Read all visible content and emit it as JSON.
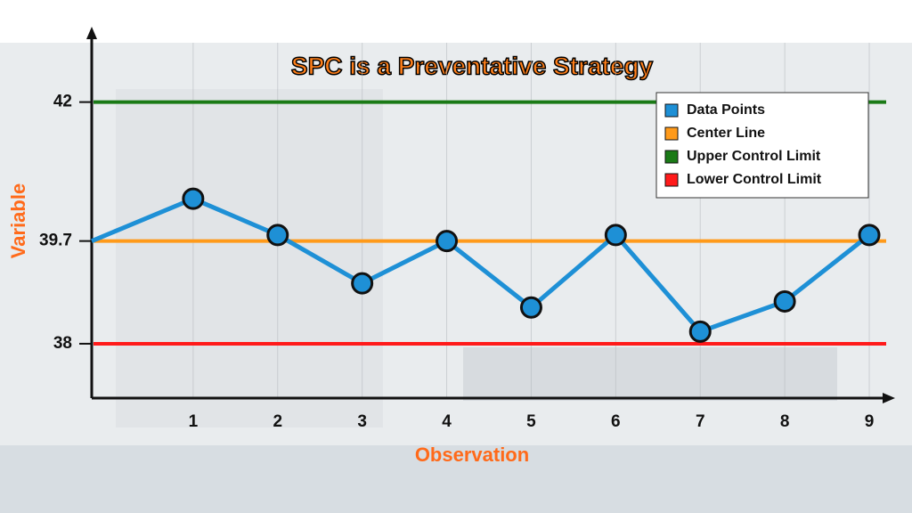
{
  "chart_data": {
    "type": "line",
    "title": "SPC is a Preventative Strategy",
    "x_label": "Observation",
    "y_label": "Variable",
    "x": [
      -0.2,
      1,
      2,
      3,
      4,
      5,
      6,
      7,
      8,
      9
    ],
    "xlim": [
      -0.2,
      9.2
    ],
    "xticks": [
      1,
      2,
      3,
      4,
      5,
      6,
      7,
      8,
      9
    ],
    "ylim": [
      37.1,
      43.1
    ],
    "yticks": [
      38,
      39.7,
      42
    ],
    "grid": true,
    "legend": "upper right",
    "series": [
      {
        "name": "Data Points",
        "color": "#1e90d6",
        "values": [
          39.7,
          40.4,
          39.8,
          39.0,
          39.7,
          38.6,
          39.8,
          38.2,
          38.7,
          39.8
        ]
      }
    ],
    "control_lines": [
      {
        "name": "Center Line",
        "color": "#ff9a1a",
        "value": 39.7
      },
      {
        "name": "Upper Control Limit",
        "color": "#1a7a16",
        "value": 42
      },
      {
        "name": "Lower Control Limit",
        "color": "#ff1a1a",
        "value": 38
      }
    ]
  }
}
